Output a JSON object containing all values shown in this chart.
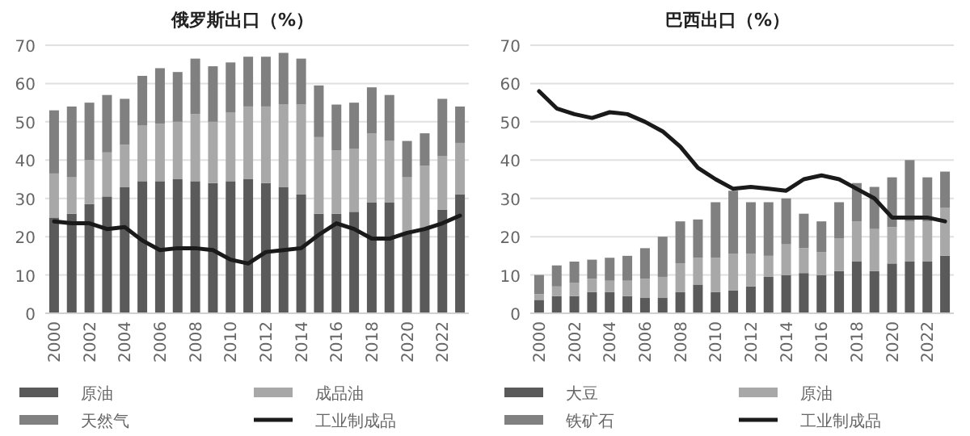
{
  "chart_data": [
    {
      "type": "bar",
      "title": "俄罗斯出口（%）",
      "stacked": true,
      "grid": "y",
      "legend": "bottom",
      "categories": [
        "2000",
        null,
        "2002",
        null,
        "2004",
        null,
        "2006",
        null,
        "2008",
        null,
        "2010",
        null,
        "2012",
        null,
        "2014",
        null,
        "2016",
        null,
        "2018",
        null,
        "2020",
        null,
        "2022",
        null
      ],
      "ylim": [
        0,
        70
      ],
      "yticks": [
        0,
        10,
        20,
        30,
        40,
        50,
        60,
        70
      ],
      "series": [
        {
          "name": "原油",
          "color": "#5a5a5a",
          "values": [
            25,
            26,
            28.5,
            30.5,
            33,
            34.5,
            34.5,
            35,
            34.5,
            34,
            34.5,
            35,
            34,
            33,
            31,
            26,
            26,
            26.5,
            29,
            29,
            21,
            22,
            27,
            31
          ]
        },
        {
          "name": "成品油",
          "color": "#a8a8a8",
          "values": [
            11.5,
            9.5,
            11.5,
            11.5,
            11,
            14.5,
            15,
            15,
            17.5,
            16,
            18,
            19,
            20,
            21.5,
            23.5,
            20,
            16.5,
            16.5,
            18,
            16,
            14.5,
            16.5,
            14,
            13.5
          ]
        },
        {
          "name": "天然气",
          "color": "#808080",
          "values": [
            16.5,
            18.5,
            15,
            15,
            12,
            13,
            14.5,
            13,
            14.5,
            14.5,
            13,
            13,
            13,
            13.5,
            12,
            13.5,
            12,
            12,
            12,
            12,
            9.5,
            8.5,
            15,
            9.5
          ]
        },
        {
          "name": "工业制成品",
          "type": "line",
          "color": "#1a1a1a",
          "values": [
            24,
            23.5,
            23.5,
            22,
            22.5,
            19,
            16.5,
            17,
            17,
            16.5,
            14,
            13,
            16,
            16.5,
            17,
            20.5,
            23.5,
            22,
            19.5,
            19.5,
            21,
            22,
            23.5,
            25.5
          ]
        }
      ]
    },
    {
      "type": "bar",
      "title": "巴西出口（%）",
      "stacked": true,
      "grid": "y",
      "legend": "bottom",
      "categories": [
        "2000",
        null,
        "2002",
        null,
        "2004",
        null,
        "2006",
        null,
        "2008",
        null,
        "2010",
        null,
        "2012",
        null,
        "2014",
        null,
        "2016",
        null,
        "2018",
        null,
        "2020",
        null,
        "2022",
        null
      ],
      "ylim": [
        0,
        70
      ],
      "yticks": [
        0,
        10,
        20,
        30,
        40,
        50,
        60,
        70
      ],
      "series": [
        {
          "name": "大豆",
          "color": "#5a5a5a",
          "values": [
            3.5,
            4.5,
            4.5,
            5.5,
            5.5,
            4.5,
            4,
            4,
            5.5,
            7.5,
            5.5,
            6,
            7,
            9.5,
            10,
            10.5,
            10,
            11,
            13.5,
            11,
            13,
            13.5,
            13.5,
            15
          ]
        },
        {
          "name": "原油",
          "color": "#a8a8a8",
          "values": [
            1.5,
            2.5,
            3.5,
            3.5,
            3,
            4,
            5,
            5.5,
            7.5,
            7,
            9,
            9.5,
            8.5,
            5.5,
            8,
            6.5,
            6,
            8.5,
            10.5,
            11,
            9.5,
            10.5,
            10.5,
            12.5
          ]
        },
        {
          "name": "铁矿石",
          "color": "#808080",
          "values": [
            5,
            5.5,
            5.5,
            5,
            6,
            6.5,
            8,
            10.5,
            11,
            10,
            14.5,
            16.5,
            13.5,
            14,
            12,
            9,
            8,
            9.5,
            10,
            11,
            13,
            16,
            11.5,
            9.5
          ]
        },
        {
          "name": "工业制成品",
          "type": "line",
          "color": "#1a1a1a",
          "values": [
            58,
            53.5,
            52,
            51,
            52.5,
            52,
            50,
            47.5,
            43.5,
            38,
            35,
            32.5,
            33,
            32.5,
            32,
            35,
            36,
            35,
            32.5,
            30,
            25,
            25,
            25,
            24
          ]
        }
      ]
    }
  ]
}
